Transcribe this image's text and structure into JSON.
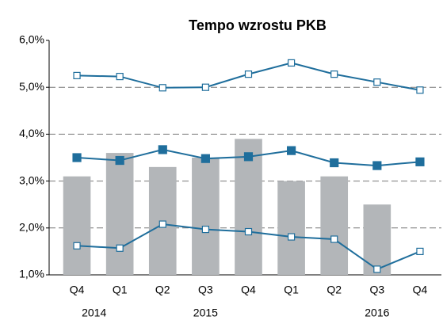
{
  "chart_data": {
    "type": "combo",
    "title": "Tempo wzrostu PKB",
    "categories": [
      "Q4",
      "Q1",
      "Q2",
      "Q3",
      "Q4",
      "Q1",
      "Q2",
      "Q3",
      "Q4"
    ],
    "x_groups": [
      "2014",
      "2015",
      "2016"
    ],
    "series": [
      {
        "type": "bar",
        "color": "#b3b6b9",
        "values": [
          3.1,
          3.6,
          3.3,
          3.5,
          3.9,
          3.0,
          3.1,
          2.5,
          null
        ]
      },
      {
        "type": "line",
        "color": "#1f6e9c",
        "marker_fill": "#ffffff",
        "values": [
          5.25,
          5.23,
          4.99,
          5.0,
          5.28,
          5.52,
          5.28,
          5.11,
          4.94
        ]
      },
      {
        "type": "line",
        "color": "#1f6e9c",
        "marker_fill": "#1f6e9c",
        "values": [
          3.5,
          3.44,
          3.67,
          3.48,
          3.52,
          3.65,
          3.39,
          3.33,
          3.41
        ]
      },
      {
        "type": "line",
        "color": "#1f6e9c",
        "marker_fill": "#ffffff",
        "values": [
          1.62,
          1.57,
          2.08,
          1.97,
          1.92,
          1.81,
          1.76,
          1.12,
          1.5
        ]
      }
    ],
    "ylim": [
      1.0,
      6.0
    ],
    "yticks": [
      {
        "value": 1.0,
        "label": "1,0%"
      },
      {
        "value": 2.0,
        "label": "2,0%"
      },
      {
        "value": 3.0,
        "label": "3,0%"
      },
      {
        "value": 4.0,
        "label": "4,0%"
      },
      {
        "value": 5.0,
        "label": "5,0%"
      },
      {
        "value": 6.0,
        "label": "6,0%"
      }
    ],
    "grid": true
  }
}
